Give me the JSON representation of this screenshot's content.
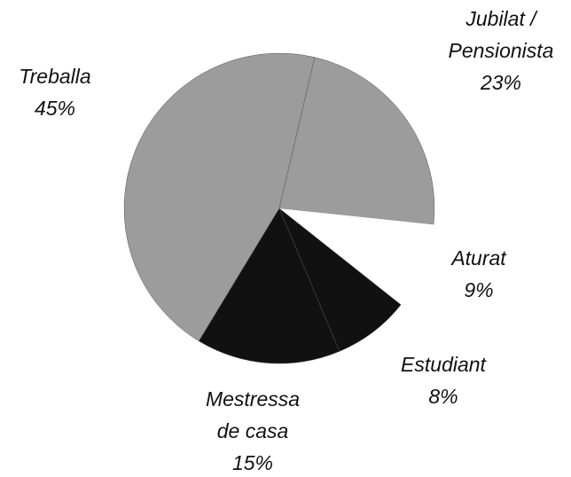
{
  "chart_data": {
    "type": "pie",
    "categories": [
      "Treballa",
      "Jubilat / Pensionista",
      "Aturat",
      "Estudiant",
      "Mestressa de casa"
    ],
    "values": [
      45,
      23,
      9,
      8,
      15
    ],
    "value_labels": [
      "45%",
      "23%",
      "9%",
      "8%",
      "15%"
    ],
    "colors": [
      "#9c9c9c",
      "#9c9c9c",
      "#ffffff",
      "#111111",
      "#111111"
    ]
  }
}
